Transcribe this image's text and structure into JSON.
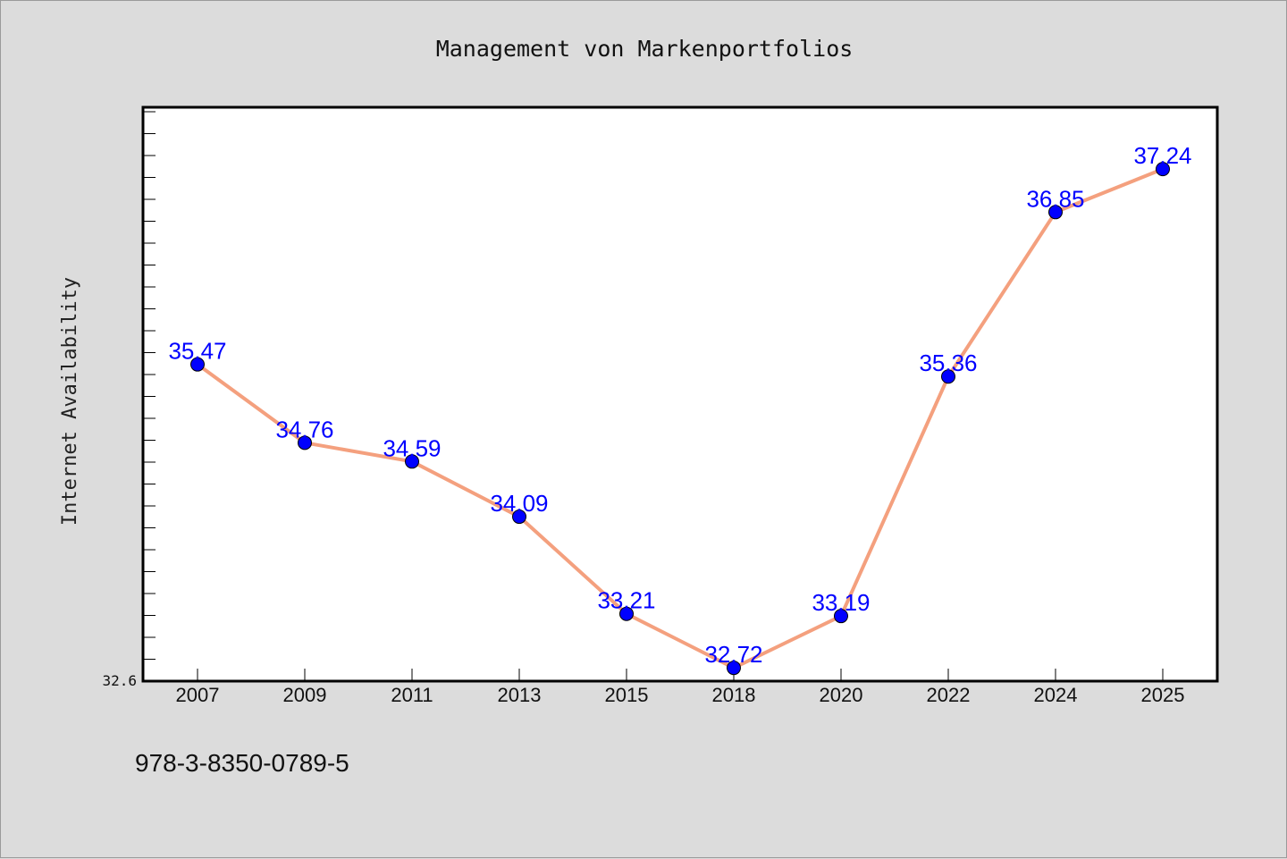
{
  "footer": {
    "isbn": "978-3-8350-0789-5"
  },
  "colors": {
    "background": "#dcdcdc",
    "plot_background": "#ffffff",
    "line": "#f4a07e",
    "marker": "#0000ff",
    "data_label": "#0000ff"
  },
  "chart_data": {
    "type": "line",
    "title": "Management von Markenportfolios",
    "xlabel": "",
    "ylabel": "Internet Availability",
    "categories": [
      "2007",
      "2009",
      "2011",
      "2013",
      "2015",
      "2018",
      "2020",
      "2022",
      "2024",
      "2025"
    ],
    "series": [
      {
        "values": [
          35.47,
          34.76,
          34.59,
          34.09,
          33.21,
          32.72,
          33.19,
          35.36,
          36.85,
          37.24
        ]
      }
    ],
    "data_labels": [
      "35.47",
      "34.76",
      "34.59",
      "34.09",
      "33.21",
      "32.72",
      "33.19",
      "35.36",
      "36.85",
      "37.24"
    ],
    "ylim": [
      32.6,
      37.8
    ],
    "ytick_labels": [
      "32.6"
    ],
    "grid": false,
    "legend": "none",
    "markers": true
  }
}
